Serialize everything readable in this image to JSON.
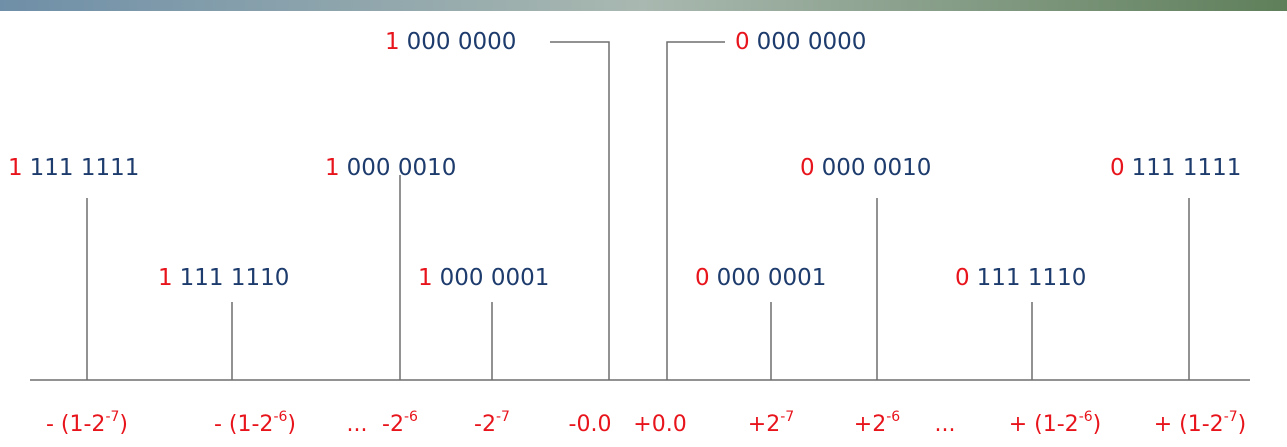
{
  "codes": [
    {
      "sign": "1",
      "bits": "111 1111"
    },
    {
      "sign": "1",
      "bits": "111 1110"
    },
    {
      "sign": "1",
      "bits": "000 0010"
    },
    {
      "sign": "1",
      "bits": "000 0001"
    },
    {
      "sign": "1",
      "bits": "000 0000"
    },
    {
      "sign": "0",
      "bits": "000 0000"
    },
    {
      "sign": "0",
      "bits": "000 0001"
    },
    {
      "sign": "0",
      "bits": "000 0010"
    },
    {
      "sign": "0",
      "bits": "111 1110"
    },
    {
      "sign": "0",
      "bits": "111 1111"
    }
  ],
  "axis_labels": [
    {
      "pre": "- (1-2",
      "sup": "-7",
      "post": ")"
    },
    {
      "pre": "- (1-2",
      "sup": "-6",
      "post": ")"
    },
    {
      "pre": "..."
    },
    {
      "pre": "-2",
      "sup": "-6"
    },
    {
      "pre": "-2",
      "sup": "-7"
    },
    {
      "pre": "-0.0"
    },
    {
      "pre": "+0.0"
    },
    {
      "pre": "+2",
      "sup": "-7"
    },
    {
      "pre": "+2",
      "sup": "-6"
    },
    {
      "pre": "..."
    },
    {
      "pre": "+ (1-2",
      "sup": "-6",
      "post": ")"
    },
    {
      "pre": "+ (1-2",
      "sup": "-7",
      "post": ")"
    }
  ]
}
